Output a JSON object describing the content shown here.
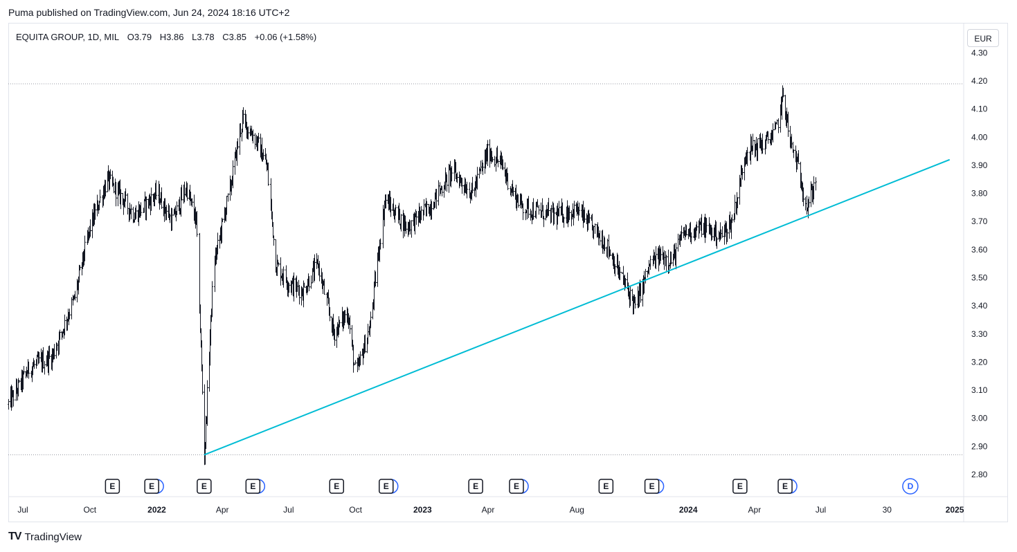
{
  "header": {
    "published_by": "Puma published on TradingView.com, Jun 24, 2024 18:16 UTC+2"
  },
  "legend": {
    "symbol": "EQUITA GROUP, 1D, MIL",
    "open_label": "O",
    "open": "3.79",
    "high_label": "H",
    "high": "3.86",
    "low_label": "L",
    "low": "3.78",
    "close_label": "C",
    "close": "3.85",
    "change": "+0.06 (+1.58%)"
  },
  "currency_button": "EUR",
  "brand": {
    "logo": "TV",
    "name": "TradingView"
  },
  "colors": {
    "candles": "#131722",
    "trendline": "#00bcd4",
    "dotted_lines": "#9598a1",
    "event_blue": "#2962ff"
  },
  "chart_data": {
    "type": "ohlc-bar",
    "symbol": "EQUITA GROUP",
    "interval": "1D",
    "exchange": "MIL",
    "currency": "EUR",
    "grid": false,
    "y_axis": {
      "ticks": [
        "2.80",
        "2.90",
        "3.00",
        "3.10",
        "3.20",
        "3.30",
        "3.40",
        "3.50",
        "3.60",
        "3.70",
        "3.80",
        "3.90",
        "4.00",
        "4.10",
        "4.20",
        "4.30"
      ],
      "range": [
        2.74,
        4.32
      ]
    },
    "x_axis": {
      "range": [
        "2021-06-11",
        "2024-12-31"
      ],
      "ticks": [
        {
          "label": "Jul",
          "date": "2021-07-01",
          "year": false
        },
        {
          "label": "Oct",
          "date": "2021-10-01",
          "year": false
        },
        {
          "label": "2022",
          "date": "2022-01-01",
          "year": true
        },
        {
          "label": "Apr",
          "date": "2022-04-01",
          "year": false
        },
        {
          "label": "Jul",
          "date": "2022-07-01",
          "year": false
        },
        {
          "label": "Oct",
          "date": "2022-10-01",
          "year": false
        },
        {
          "label": "2023",
          "date": "2023-01-01",
          "year": true
        },
        {
          "label": "Apr",
          "date": "2023-04-01",
          "year": false
        },
        {
          "label": "Aug",
          "date": "2023-08-01",
          "year": false
        },
        {
          "label": "2024",
          "date": "2024-01-01",
          "year": true
        },
        {
          "label": "Apr",
          "date": "2024-04-01",
          "year": false
        },
        {
          "label": "Jul",
          "date": "2024-07-01",
          "year": false
        },
        {
          "label": "30",
          "date": "2024-09-30",
          "year": false
        },
        {
          "label": "2025",
          "date": "2025-01-01",
          "year": true
        }
      ]
    },
    "price_path": [
      {
        "date": "2021-06-11",
        "price": 3.05
      },
      {
        "date": "2021-07-10",
        "price": 3.18
      },
      {
        "date": "2021-08-10",
        "price": 3.22
      },
      {
        "date": "2021-09-10",
        "price": 3.43
      },
      {
        "date": "2021-10-01",
        "price": 3.68
      },
      {
        "date": "2021-10-25",
        "price": 3.85
      },
      {
        "date": "2021-11-15",
        "price": 3.78
      },
      {
        "date": "2021-12-01",
        "price": 3.72
      },
      {
        "date": "2022-01-01",
        "price": 3.8
      },
      {
        "date": "2022-01-22",
        "price": 3.7
      },
      {
        "date": "2022-02-10",
        "price": 3.82
      },
      {
        "date": "2022-02-24",
        "price": 3.7
      },
      {
        "date": "2022-03-07",
        "price": 2.87
      },
      {
        "date": "2022-03-20",
        "price": 3.55
      },
      {
        "date": "2022-04-10",
        "price": 3.8
      },
      {
        "date": "2022-04-28",
        "price": 4.06
      },
      {
        "date": "2022-05-15",
        "price": 4.0
      },
      {
        "date": "2022-06-01",
        "price": 3.9
      },
      {
        "date": "2022-06-13",
        "price": 3.55
      },
      {
        "date": "2022-07-01",
        "price": 3.48
      },
      {
        "date": "2022-07-20",
        "price": 3.45
      },
      {
        "date": "2022-08-10",
        "price": 3.55
      },
      {
        "date": "2022-09-01",
        "price": 3.3
      },
      {
        "date": "2022-09-20",
        "price": 3.38
      },
      {
        "date": "2022-10-01",
        "price": 3.15
      },
      {
        "date": "2022-10-20",
        "price": 3.32
      },
      {
        "date": "2022-11-10",
        "price": 3.78
      },
      {
        "date": "2022-12-10",
        "price": 3.68
      },
      {
        "date": "2023-01-10",
        "price": 3.75
      },
      {
        "date": "2023-02-10",
        "price": 3.88
      },
      {
        "date": "2023-03-10",
        "price": 3.8
      },
      {
        "date": "2023-04-01",
        "price": 3.95
      },
      {
        "date": "2023-04-20",
        "price": 3.9
      },
      {
        "date": "2023-05-05",
        "price": 3.8
      },
      {
        "date": "2023-05-20",
        "price": 3.75
      },
      {
        "date": "2023-07-01",
        "price": 3.72
      },
      {
        "date": "2023-08-01",
        "price": 3.74
      },
      {
        "date": "2023-08-20",
        "price": 3.68
      },
      {
        "date": "2023-09-10",
        "price": 3.62
      },
      {
        "date": "2023-10-01",
        "price": 3.5
      },
      {
        "date": "2023-10-20",
        "price": 3.4
      },
      {
        "date": "2023-11-10",
        "price": 3.55
      },
      {
        "date": "2023-11-25",
        "price": 3.58
      },
      {
        "date": "2023-12-10",
        "price": 3.56
      },
      {
        "date": "2023-12-25",
        "price": 3.66
      },
      {
        "date": "2024-01-20",
        "price": 3.68
      },
      {
        "date": "2024-02-15",
        "price": 3.65
      },
      {
        "date": "2024-03-01",
        "price": 3.7
      },
      {
        "date": "2024-03-20",
        "price": 3.95
      },
      {
        "date": "2024-04-15",
        "price": 3.98
      },
      {
        "date": "2024-04-30",
        "price": 4.02
      },
      {
        "date": "2024-05-10",
        "price": 4.15
      },
      {
        "date": "2024-05-20",
        "price": 3.98
      },
      {
        "date": "2024-06-01",
        "price": 3.88
      },
      {
        "date": "2024-06-12",
        "price": 3.75
      },
      {
        "date": "2024-06-24",
        "price": 3.85
      }
    ],
    "trendline": {
      "start": {
        "date": "2022-03-07",
        "price": 2.87
      },
      "end": {
        "date": "2024-12-25",
        "price": 3.92
      }
    },
    "horizontal_levels": [
      4.19,
      2.87
    ],
    "events": [
      {
        "date": "2021-11-01",
        "label": "E",
        "kind": "earnings"
      },
      {
        "date": "2021-12-25",
        "label": "E",
        "kind": "earnings-dividend"
      },
      {
        "date": "2022-03-07",
        "label": "E",
        "kind": "earnings"
      },
      {
        "date": "2022-05-13",
        "label": "E",
        "kind": "earnings-dividend"
      },
      {
        "date": "2022-09-05",
        "label": "E",
        "kind": "earnings"
      },
      {
        "date": "2022-11-12",
        "label": "E",
        "kind": "earnings-dividend"
      },
      {
        "date": "2023-03-15",
        "label": "E",
        "kind": "earnings"
      },
      {
        "date": "2023-05-10",
        "label": "E",
        "kind": "earnings-dividend"
      },
      {
        "date": "2023-09-10",
        "label": "E",
        "kind": "earnings"
      },
      {
        "date": "2023-11-12",
        "label": "E",
        "kind": "earnings-dividend"
      },
      {
        "date": "2024-03-12",
        "label": "E",
        "kind": "earnings"
      },
      {
        "date": "2024-05-13",
        "label": "E",
        "kind": "earnings-dividend"
      },
      {
        "date": "2024-11-01",
        "label": "D",
        "kind": "dividend"
      }
    ]
  }
}
